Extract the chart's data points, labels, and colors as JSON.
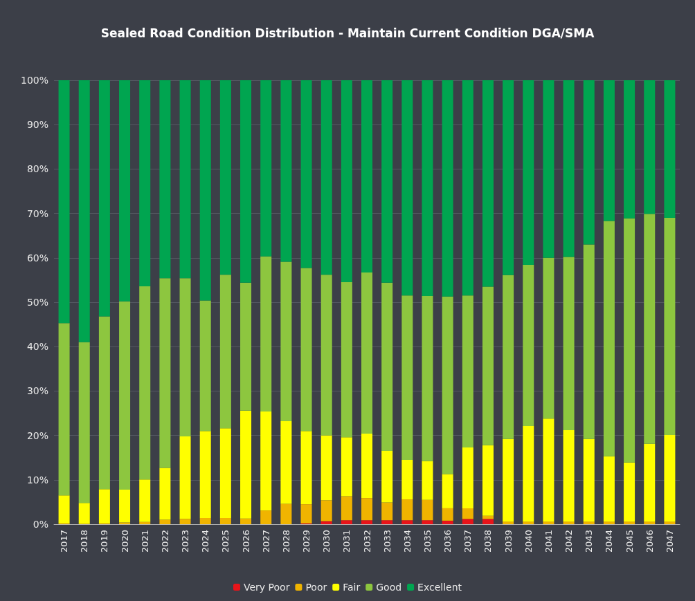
{
  "chart_data": {
    "type": "bar",
    "title": "Sealed Road Condition Distribution - Maintain Current Condition DGA/SMA",
    "stacked": true,
    "grid": "y",
    "legend": "bottom",
    "categories": [
      "2017",
      "2018",
      "2019",
      "2020",
      "2021",
      "2022",
      "2023",
      "2024",
      "2025",
      "2026",
      "2027",
      "2028",
      "2029",
      "2030",
      "2031",
      "2032",
      "2033",
      "2034",
      "2035",
      "2036",
      "2037",
      "2038",
      "2039",
      "2040",
      "2041",
      "2042",
      "2043",
      "2044",
      "2045",
      "2046",
      "2047"
    ],
    "ylim": [
      0,
      100
    ],
    "yticks": [
      {
        "value": 0,
        "label": "0%"
      },
      {
        "value": 10,
        "label": "10%"
      },
      {
        "value": 20,
        "label": "20%"
      },
      {
        "value": 30,
        "label": "30%"
      },
      {
        "value": 40,
        "label": "40%"
      },
      {
        "value": 50,
        "label": "50%"
      },
      {
        "value": 60,
        "label": "60%"
      },
      {
        "value": 70,
        "label": "70%"
      },
      {
        "value": 80,
        "label": "80%"
      },
      {
        "value": 90,
        "label": "90%"
      },
      {
        "value": 100,
        "label": "100%"
      }
    ],
    "series": [
      {
        "name": "Very Poor",
        "color": "#e8141a",
        "values": [
          0,
          0,
          0,
          0,
          0,
          0,
          0,
          0,
          0,
          0,
          0,
          0,
          0.2,
          0.7,
          0.9,
          0.9,
          0.9,
          0.9,
          0.9,
          0.8,
          1.2,
          1.2,
          0,
          0,
          0,
          0,
          0,
          0,
          0,
          0,
          0
        ]
      },
      {
        "name": "Poor",
        "color": "#f0b400",
        "values": [
          0.2,
          0.1,
          0.2,
          0.4,
          0.5,
          1.0,
          1.2,
          1.4,
          1.4,
          1.3,
          3.1,
          4.6,
          4.3,
          4.7,
          5.4,
          5.0,
          4.0,
          4.7,
          4.6,
          2.8,
          2.4,
          0.7,
          0.6,
          0.6,
          0.6,
          0.6,
          0.6,
          0.6,
          0.6,
          0.6,
          0.6
        ]
      },
      {
        "name": "Fair",
        "color": "#ffff00",
        "values": [
          6.3,
          4.7,
          7.7,
          7.4,
          9.6,
          11.7,
          18.6,
          19.6,
          20.2,
          24.3,
          22.3,
          18.6,
          16.5,
          14.6,
          13.3,
          14.5,
          11.6,
          8.9,
          8.7,
          7.7,
          13.7,
          15.9,
          18.6,
          21.5,
          23.2,
          20.6,
          18.6,
          14.7,
          13.3,
          17.5,
          19.5
        ]
      },
      {
        "name": "Good",
        "color": "#8dc63f",
        "values": [
          38.8,
          36.2,
          38.9,
          42.4,
          43.5,
          42.7,
          35.6,
          29.4,
          34.6,
          28.8,
          34.9,
          35.9,
          36.7,
          36.2,
          34.9,
          36.3,
          37.9,
          37.0,
          37.2,
          40.0,
          34.2,
          35.7,
          36.9,
          36.3,
          36.2,
          39.0,
          43.8,
          53.0,
          55.0,
          51.8,
          48.9
        ]
      },
      {
        "name": "Excellent",
        "color": "#00a550",
        "values": [
          54.7,
          59,
          53.2,
          49.8,
          46.4,
          44.6,
          44.6,
          49.6,
          43.8,
          45.6,
          39.7,
          40.9,
          42.3,
          43.8,
          45.5,
          43.3,
          45.6,
          48.5,
          48.6,
          48.7,
          48.5,
          46.5,
          43.9,
          41.6,
          40,
          39.8,
          37,
          31.7,
          31.1,
          30.1,
          31
        ]
      }
    ]
  }
}
